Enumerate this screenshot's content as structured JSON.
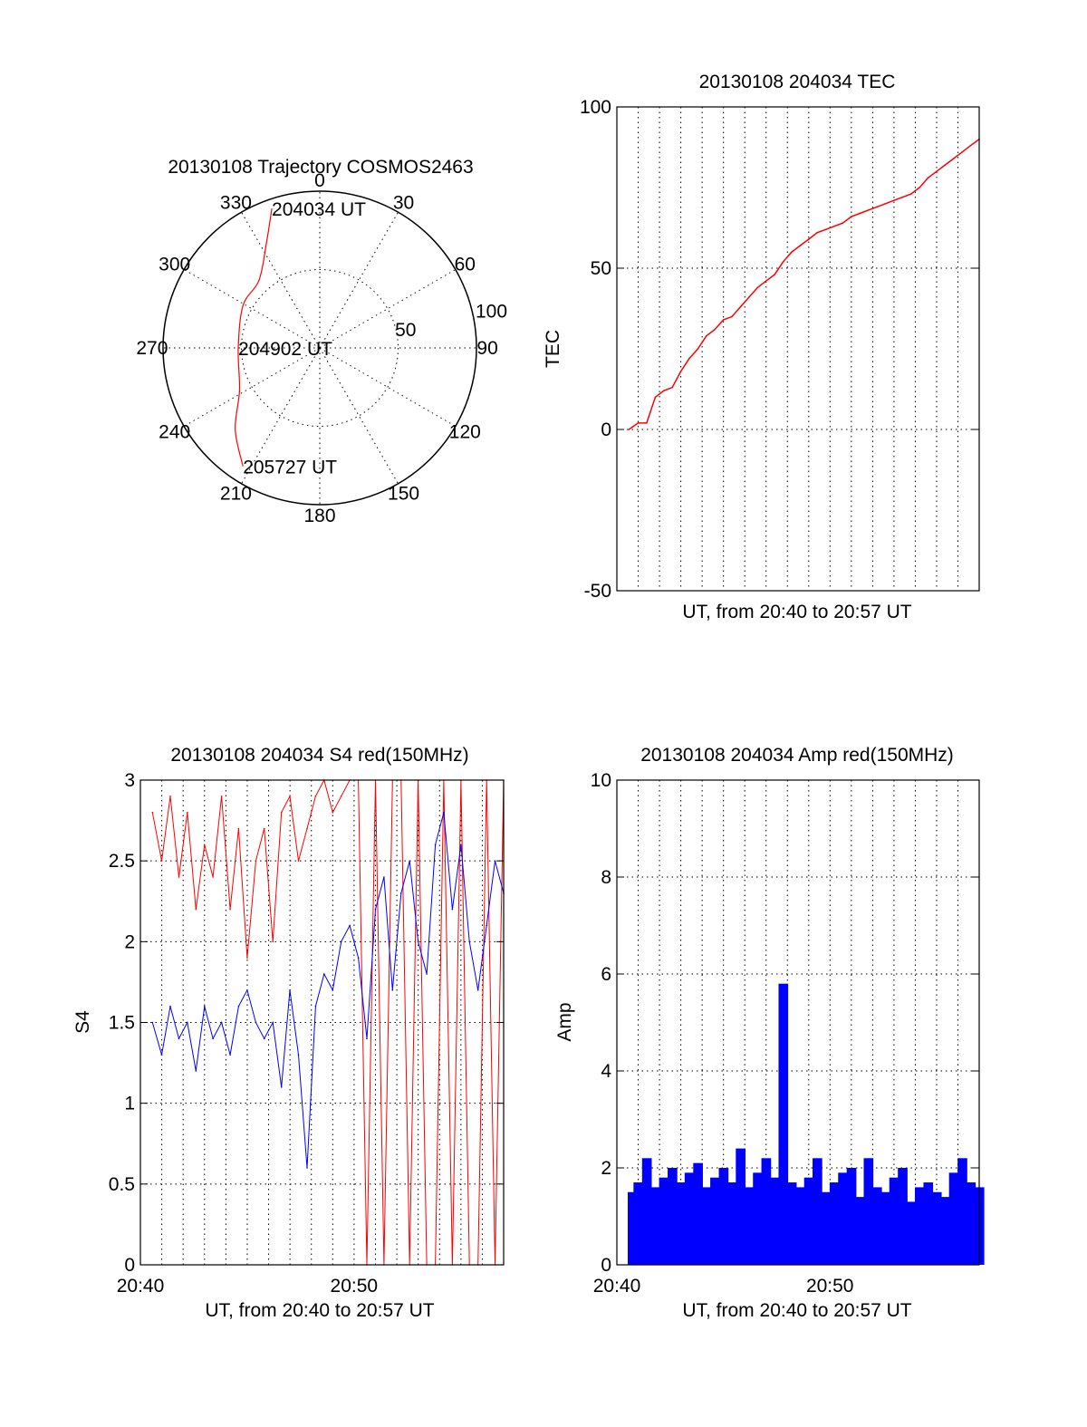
{
  "colors": {
    "red": "#ff0000",
    "blue": "#0000ff",
    "black": "#000000"
  },
  "chart_data": [
    {
      "type": "polar",
      "title": "20130108 Trajectory COSMOS2463",
      "angle_ticks": [
        "0",
        "30",
        "60",
        "90",
        "120",
        "150",
        "180",
        "210",
        "240",
        "270",
        "300",
        "330"
      ],
      "angle_values": [
        0,
        30,
        60,
        90,
        120,
        150,
        180,
        210,
        240,
        270,
        300,
        330
      ],
      "radial_ticks": [
        "50",
        "100"
      ],
      "radial_values": [
        50,
        100
      ],
      "rmax": 100,
      "trajectory": {
        "color": "red",
        "points": [
          [
            341,
            94
          ],
          [
            333,
            75
          ],
          [
            318,
            58
          ],
          [
            299,
            56
          ],
          [
            270,
            52
          ],
          [
            242,
            58
          ],
          [
            226,
            75
          ],
          [
            213,
            90
          ]
        ]
      },
      "annotations": [
        {
          "text": "204034 UT",
          "az": 341,
          "r": 94
        },
        {
          "text": "204902 UT",
          "az": 270,
          "r": 52
        },
        {
          "text": "205727 UT",
          "az": 213,
          "r": 90
        }
      ]
    },
    {
      "type": "line",
      "title": "20130108 204034 TEC",
      "xlabel": "UT, from 20:40 to 20:57 UT",
      "ylabel": "TEC",
      "xlim": [
        20.6667,
        20.95
      ],
      "ylim": [
        -50,
        100
      ],
      "yticks": [
        -50,
        0,
        50,
        100
      ],
      "ytick_labels": [
        "-50",
        "0",
        "50",
        "100"
      ],
      "grid": true,
      "series": [
        {
          "color": "red",
          "x": [
            20.6761,
            20.6833,
            20.69,
            20.6967,
            20.7033,
            20.71,
            20.7167,
            20.7233,
            20.73,
            20.7367,
            20.7433,
            20.75,
            20.7567,
            20.7633,
            20.77,
            20.7767,
            20.7833,
            20.79,
            20.7967,
            20.8033,
            20.81,
            20.8167,
            20.8233,
            20.83,
            20.8367,
            20.8433,
            20.85,
            20.8567,
            20.8633,
            20.87,
            20.8767,
            20.8833,
            20.89,
            20.8967,
            20.9033,
            20.91,
            20.9167,
            20.9233,
            20.93,
            20.9367,
            20.9433,
            20.95
          ],
          "y": [
            0,
            2,
            2,
            10,
            12,
            13,
            18,
            22,
            25,
            29,
            31,
            34,
            35,
            38,
            41,
            44,
            46,
            48,
            52,
            55,
            57,
            59,
            61,
            62,
            63,
            64,
            66,
            67,
            68,
            69,
            70,
            71,
            72,
            73,
            75,
            78,
            80,
            82,
            84,
            86,
            88,
            90
          ]
        }
      ]
    },
    {
      "type": "line",
      "title": "20130108 204034 S4 red(150MHz)",
      "xlabel": "UT, from 20:40 to 20:57 UT",
      "ylabel": "S4",
      "xlim": [
        20.6667,
        20.95
      ],
      "ylim": [
        0,
        3
      ],
      "yticks": [
        0,
        0.5,
        1,
        1.5,
        2,
        2.5,
        3
      ],
      "ytick_labels": [
        "0",
        "0.5",
        "1",
        "1.5",
        "2",
        "2.5",
        "3"
      ],
      "xticks": [
        20.6667,
        20.8333
      ],
      "xtick_labels": [
        "20:40",
        "20:50"
      ],
      "grid": true,
      "series": [
        {
          "color": "red",
          "x": [
            20.6761,
            20.6833,
            20.69,
            20.6967,
            20.7033,
            20.71,
            20.7167,
            20.7233,
            20.73,
            20.7367,
            20.7433,
            20.75,
            20.7567,
            20.7633,
            20.77,
            20.7767,
            20.7833,
            20.79,
            20.7967,
            20.8033,
            20.81,
            20.8167,
            20.8233,
            20.83,
            20.8367,
            20.8433,
            20.85,
            20.8567,
            20.8633,
            20.87,
            20.8767,
            20.8833,
            20.89,
            20.8967,
            20.9033,
            20.91,
            20.9167,
            20.9233,
            20.93,
            20.9367,
            20.9433,
            20.95
          ],
          "y": [
            2.8,
            2.5,
            2.9,
            2.4,
            2.8,
            2.2,
            2.6,
            2.4,
            2.9,
            2.2,
            2.7,
            1.9,
            2.5,
            2.7,
            2.0,
            2.8,
            2.9,
            2.5,
            2.7,
            2.9,
            3.0,
            2.8,
            2.9,
            3.0,
            3.0,
            0,
            3.0,
            0,
            3.0,
            3.0,
            0,
            3.0,
            0,
            0,
            3.0,
            0,
            3.0,
            0,
            0,
            3.0,
            0,
            3.0
          ]
        },
        {
          "color": "blue",
          "x": [
            20.6761,
            20.6833,
            20.69,
            20.6967,
            20.7033,
            20.71,
            20.7167,
            20.7233,
            20.73,
            20.7367,
            20.7433,
            20.75,
            20.7567,
            20.7633,
            20.77,
            20.7767,
            20.7833,
            20.79,
            20.7967,
            20.8033,
            20.81,
            20.8167,
            20.8233,
            20.83,
            20.8367,
            20.8433,
            20.85,
            20.8567,
            20.8633,
            20.87,
            20.8767,
            20.8833,
            20.89,
            20.8967,
            20.9033,
            20.91,
            20.9167,
            20.9233,
            20.93,
            20.9367,
            20.9433,
            20.95
          ],
          "y": [
            1.5,
            1.3,
            1.6,
            1.4,
            1.5,
            1.2,
            1.6,
            1.4,
            1.5,
            1.3,
            1.6,
            1.7,
            1.5,
            1.4,
            1.5,
            1.1,
            1.7,
            1.3,
            0.6,
            1.6,
            1.8,
            1.7,
            2.0,
            2.1,
            1.9,
            1.4,
            2.2,
            2.4,
            1.7,
            2.3,
            2.5,
            2.0,
            1.8,
            2.6,
            2.8,
            2.2,
            2.6,
            2.0,
            1.7,
            2.1,
            2.5,
            2.3
          ]
        }
      ]
    },
    {
      "type": "bar",
      "title": "20130108 204034 Amp red(150MHz)",
      "xlabel": "UT, from 20:40 to 20:57 UT",
      "ylabel": "Amp",
      "xlim": [
        20.6667,
        20.95
      ],
      "ylim": [
        0,
        10
      ],
      "yticks": [
        0,
        2,
        4,
        6,
        8,
        10
      ],
      "ytick_labels": [
        "0",
        "2",
        "4",
        "6",
        "8",
        "10"
      ],
      "xticks": [
        20.6667,
        20.8333
      ],
      "xtick_labels": [
        "20:40",
        "20:50"
      ],
      "grid": true,
      "series": [
        {
          "color": "blue",
          "x": [
            20.6761,
            20.6833,
            20.69,
            20.6967,
            20.7033,
            20.71,
            20.7167,
            20.7233,
            20.73,
            20.7367,
            20.7433,
            20.75,
            20.7567,
            20.7633,
            20.77,
            20.7767,
            20.7833,
            20.79,
            20.7967,
            20.8033,
            20.81,
            20.8167,
            20.8233,
            20.83,
            20.8367,
            20.8433,
            20.85,
            20.8567,
            20.8633,
            20.87,
            20.8767,
            20.8833,
            20.89,
            20.8967,
            20.9033,
            20.91,
            20.9167,
            20.9233,
            20.93,
            20.9367,
            20.9433,
            20.95
          ],
          "y": [
            1.5,
            1.7,
            2.2,
            1.6,
            1.8,
            2.0,
            1.7,
            1.9,
            2.1,
            1.6,
            1.8,
            2.0,
            1.7,
            2.4,
            1.6,
            1.9,
            2.2,
            1.8,
            5.8,
            1.7,
            1.6,
            1.8,
            2.2,
            1.5,
            1.7,
            1.9,
            2.0,
            1.4,
            2.2,
            1.6,
            1.5,
            1.8,
            2.0,
            1.3,
            1.6,
            1.7,
            1.5,
            1.4,
            1.9,
            2.2,
            1.7,
            1.6
          ]
        }
      ]
    }
  ]
}
